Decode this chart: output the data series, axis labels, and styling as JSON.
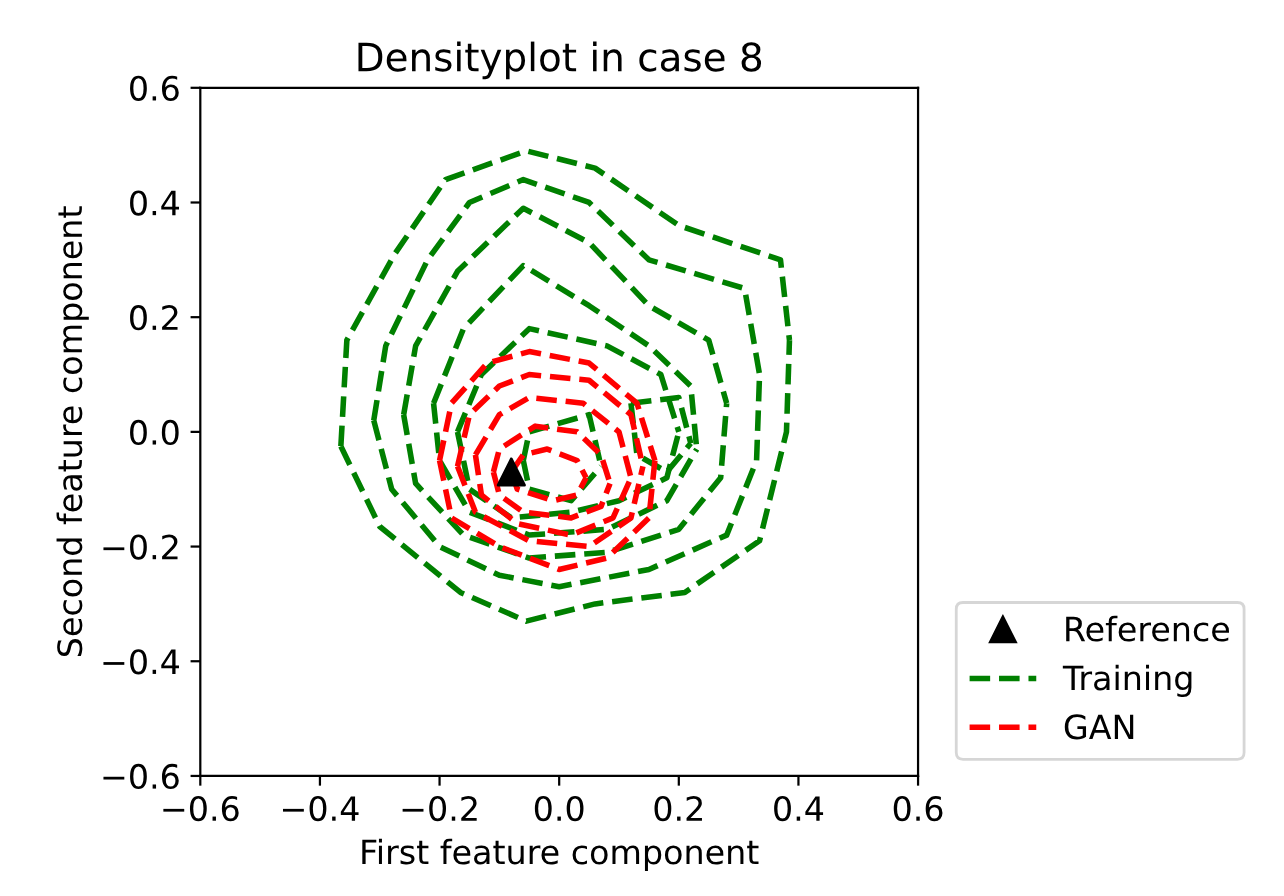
{
  "chart_data": {
    "type": "line",
    "title": "Densityplot in case 8",
    "xlabel": "First feature component",
    "ylabel": "Second feature component",
    "xlim": [
      -0.6,
      0.6
    ],
    "ylim": [
      -0.6,
      0.6
    ],
    "xticks": [
      {
        "value": -0.6,
        "label": "−0.6"
      },
      {
        "value": -0.4,
        "label": "−0.4"
      },
      {
        "value": -0.2,
        "label": "−0.2"
      },
      {
        "value": 0,
        "label": "0.0"
      },
      0.2,
      0.4,
      0.6
    ],
    "yticks": [
      {
        "value": -0.6,
        "label": "−0.6"
      },
      {
        "value": -0.4,
        "label": "−0.4"
      },
      {
        "value": -0.2,
        "label": "−0.2"
      },
      {
        "value": 0,
        "label": "0.0"
      },
      0.2,
      0.4,
      0.6
    ],
    "legend": "bottom right",
    "line_style": "dashed",
    "grid": false,
    "series": [
      {
        "type": "scatter",
        "name": "Reference",
        "color": "#000000",
        "marker": "triangle",
        "x": [
          -0.08
        ],
        "values": [
          -0.07
        ]
      },
      {
        "name": "Training",
        "color": "#008000",
        "x": [
          -0.365,
          -0.355,
          -0.275,
          -0.19,
          -0.055,
          0.06,
          0.2,
          0.37,
          0.385,
          null,
          -0.365,
          -0.3,
          -0.165,
          -0.055,
          0.06,
          0.21,
          0.335,
          0.38,
          0.385
        ],
        "values": [
          -0.025,
          0.16,
          0.31,
          0.44,
          0.49,
          0.46,
          0.36,
          0.3,
          0.16,
          null,
          -0.025,
          -0.165,
          -0.28,
          -0.33,
          -0.3,
          -0.28,
          -0.19,
          0.0,
          0.16
        ]
      },
      {
        "color": "#008000",
        "x": [
          -0.31,
          -0.29,
          -0.22,
          -0.15,
          -0.06,
          0.05,
          0.15,
          0.31,
          0.335,
          null,
          -0.31,
          -0.28,
          -0.2,
          -0.1,
          0.0,
          0.15,
          0.28,
          0.33,
          0.335
        ],
        "values": [
          0.02,
          0.15,
          0.3,
          0.4,
          0.44,
          0.4,
          0.3,
          0.25,
          0.1,
          null,
          0.02,
          -0.1,
          -0.2,
          -0.25,
          -0.27,
          -0.24,
          -0.18,
          -0.05,
          0.1
        ]
      },
      {
        "color": "#008000",
        "x": [
          -0.26,
          -0.24,
          -0.17,
          -0.06,
          0.05,
          0.15,
          0.25,
          0.28,
          null,
          -0.26,
          -0.24,
          -0.16,
          -0.05,
          0.08,
          0.2,
          0.27,
          0.28
        ],
        "values": [
          0.03,
          0.15,
          0.28,
          0.39,
          0.33,
          0.22,
          0.16,
          0.05,
          null,
          0.03,
          -0.09,
          -0.18,
          -0.22,
          -0.21,
          -0.17,
          -0.08,
          0.05
        ]
      },
      {
        "color": "#008000",
        "x": [
          -0.21,
          -0.16,
          -0.06,
          0.05,
          0.15,
          0.22,
          0.23,
          null,
          -0.21,
          -0.2,
          -0.15,
          -0.05,
          0.08,
          0.18,
          0.23
        ],
        "values": [
          0.05,
          0.18,
          0.29,
          0.22,
          0.15,
          0.08,
          -0.03,
          null,
          0.05,
          -0.05,
          -0.14,
          -0.18,
          -0.17,
          -0.12,
          -0.03
        ]
      },
      {
        "color": "#008000",
        "x": [
          -0.17,
          -0.13,
          -0.05,
          0.08,
          0.17,
          0.2,
          null,
          -0.17,
          -0.15,
          -0.08,
          0.02,
          0.1,
          0.18,
          0.2
        ],
        "values": [
          0.0,
          0.1,
          0.18,
          0.15,
          0.1,
          0.0,
          null,
          0.0,
          -0.1,
          -0.15,
          -0.14,
          -0.12,
          -0.08,
          0.0
        ]
      },
      {
        "color": "#008000",
        "x": [
          0.12,
          0.2,
          0.22,
          null,
          0.12,
          0.13,
          0.18,
          0.22
        ],
        "values": [
          0.05,
          0.06,
          -0.02,
          null,
          0.05,
          -0.04,
          -0.07,
          -0.02
        ]
      },
      {
        "color": "#008000",
        "x": [
          -0.06,
          -0.05,
          0.05,
          0.07,
          null,
          -0.06,
          -0.05,
          0.02,
          0.07
        ],
        "values": [
          -0.05,
          0.0,
          0.03,
          -0.06,
          null,
          -0.05,
          -0.1,
          -0.12,
          -0.06
        ]
      },
      {
        "name": "GAN",
        "color": "#ff0000",
        "x": [
          -0.2,
          -0.18,
          -0.12,
          -0.05,
          0.05,
          0.13,
          0.16,
          null,
          -0.2,
          -0.18,
          -0.1,
          0.0,
          0.08,
          0.15,
          0.16
        ],
        "values": [
          -0.05,
          0.05,
          0.12,
          0.14,
          0.12,
          0.05,
          -0.05,
          null,
          -0.05,
          -0.15,
          -0.2,
          -0.24,
          -0.22,
          -0.15,
          -0.05
        ]
      },
      {
        "color": "#ff0000",
        "x": [
          -0.17,
          -0.15,
          -0.1,
          -0.05,
          0.05,
          0.12,
          0.14,
          null,
          -0.17,
          -0.14,
          -0.05,
          0.05,
          0.12,
          0.14
        ],
        "values": [
          -0.06,
          0.03,
          0.08,
          0.1,
          0.09,
          0.03,
          -0.06,
          null,
          -0.06,
          -0.14,
          -0.19,
          -0.2,
          -0.15,
          -0.06
        ]
      },
      {
        "color": "#ff0000",
        "x": [
          -0.14,
          -0.1,
          -0.05,
          0.04,
          0.1,
          0.12,
          null,
          -0.14,
          -0.13,
          -0.07,
          0.02,
          0.09,
          0.12
        ],
        "values": [
          -0.04,
          0.03,
          0.06,
          0.05,
          0.0,
          -0.08,
          null,
          -0.04,
          -0.11,
          -0.16,
          -0.18,
          -0.15,
          -0.08
        ]
      },
      {
        "color": "#ff0000",
        "x": [
          -0.11,
          -0.1,
          -0.04,
          0.03,
          0.07,
          0.085,
          null,
          -0.11,
          -0.1,
          -0.06,
          0.02,
          0.07,
          0.085
        ],
        "values": [
          -0.07,
          -0.03,
          0.01,
          0.0,
          -0.04,
          -0.09,
          null,
          -0.07,
          -0.11,
          -0.14,
          -0.15,
          -0.13,
          -0.09
        ]
      },
      {
        "color": "#ff0000",
        "x": [
          -0.08,
          -0.06,
          -0.02,
          0.03,
          0.045,
          null,
          -0.08,
          -0.07,
          -0.01,
          0.03,
          0.045
        ],
        "values": [
          -0.07,
          -0.04,
          -0.03,
          -0.05,
          -0.08,
          null,
          -0.07,
          -0.1,
          -0.12,
          -0.11,
          -0.08
        ]
      }
    ]
  }
}
